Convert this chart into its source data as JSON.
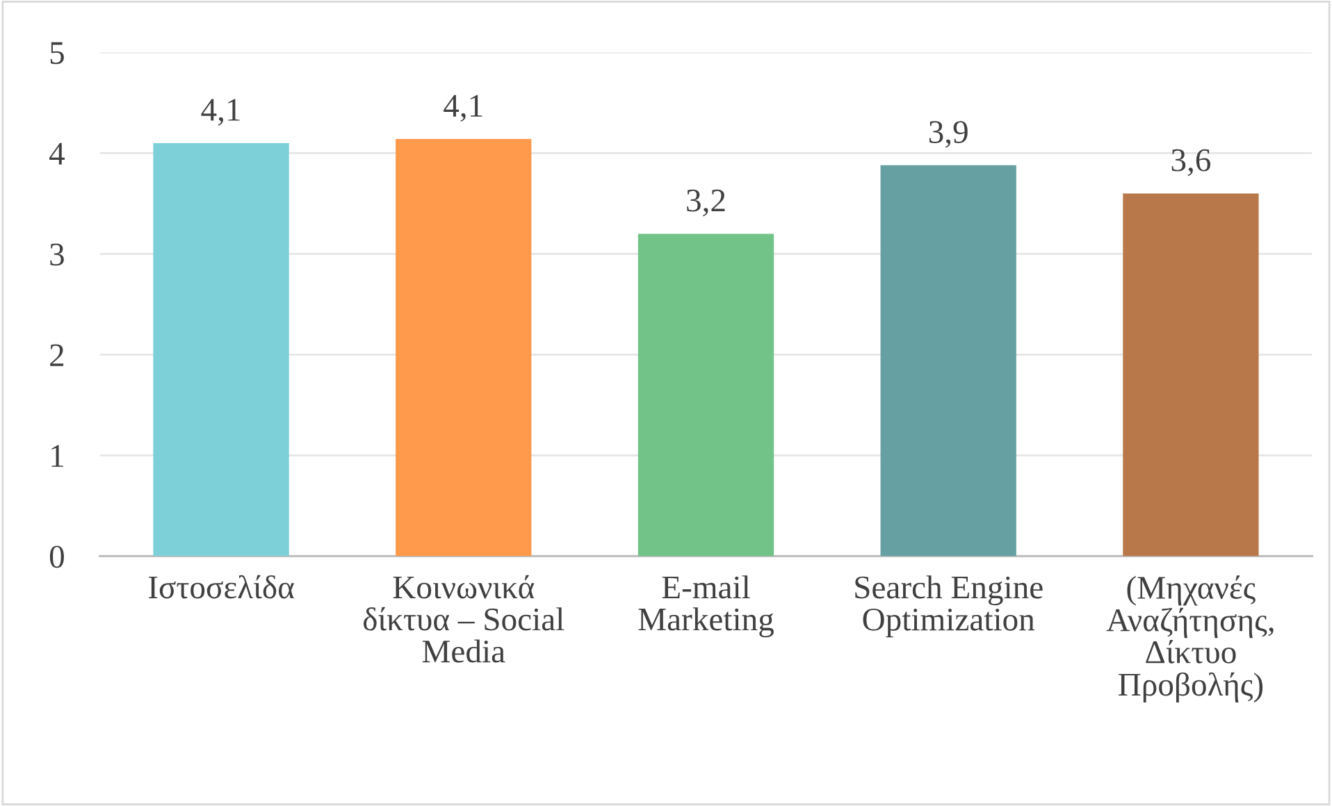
{
  "chart_data": {
    "type": "bar",
    "categories": [
      "Ιστοσελίδα",
      "Κοινωνικά\nδίκτυα – Social\nMedia",
      "E-mail\nMarketing",
      "Search Engine\nOptimization",
      "(Μηχανές\nΑναζήτησης,\nΔίκτυο\nΠροβολής)"
    ],
    "values": [
      4.1,
      4.14,
      3.2,
      3.88,
      3.6
    ],
    "value_labels": [
      "4,1",
      "4,1",
      "3,2",
      "3,9",
      "3,6"
    ],
    "colors": [
      "#7dcfd8",
      "#ff9a4d",
      "#72c387",
      "#66a0a2",
      "#b8784a"
    ],
    "ylim": [
      0,
      5
    ],
    "yticks": [
      0,
      1,
      2,
      3,
      4,
      5
    ],
    "grid": "y"
  }
}
